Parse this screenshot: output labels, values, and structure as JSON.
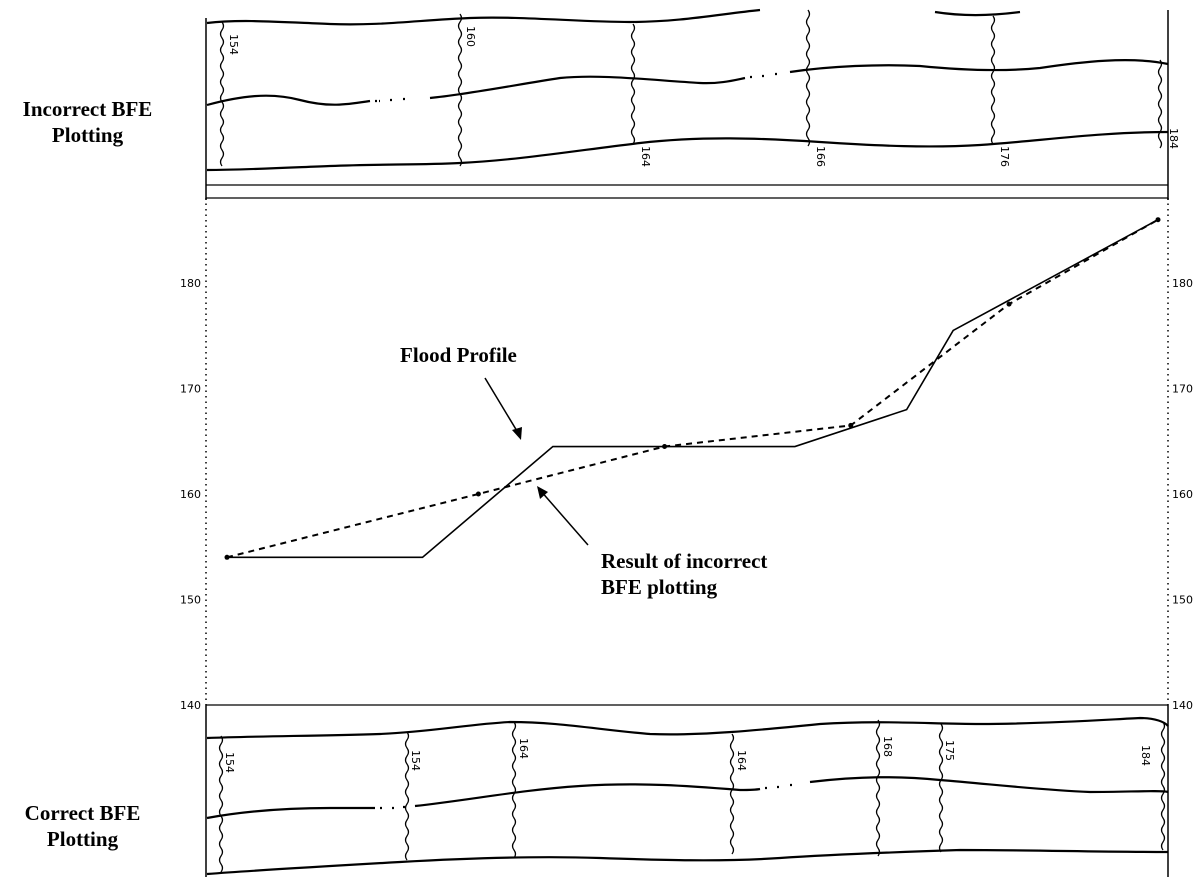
{
  "labels": {
    "top_panel": "Incorrect BFE Plotting",
    "bottom_panel": "Correct BFE Plotting",
    "flood_profile": "Flood Profile",
    "incorrect_result_line1": "Result of incorrect",
    "incorrect_result_line2": "BFE plotting"
  },
  "top_map_bfe_labels": [
    "154",
    "160",
    "164",
    "166",
    "176",
    "184"
  ],
  "bottom_map_bfe_labels": [
    "154",
    "154",
    "164",
    "164",
    "168",
    "175",
    "184"
  ],
  "elevation_axis_ticks": [
    "140",
    "150",
    "160",
    "170",
    "180"
  ],
  "chart_data": {
    "type": "line",
    "title": "",
    "xlabel": "",
    "ylabel": "",
    "ylim": [
      140,
      186
    ],
    "series": [
      {
        "name": "Flood Profile",
        "style": "solid",
        "points": [
          [
            0,
            154
          ],
          [
            0.21,
            154
          ],
          [
            0.35,
            164.5
          ],
          [
            0.61,
            164.5
          ],
          [
            0.73,
            168
          ],
          [
            0.78,
            175.5
          ],
          [
            1.0,
            186
          ]
        ]
      },
      {
        "name": "Result of incorrect BFE plotting",
        "style": "dashed",
        "points": [
          [
            0,
            154
          ],
          [
            0.27,
            160
          ],
          [
            0.47,
            164.5
          ],
          [
            0.67,
            166.5
          ],
          [
            0.84,
            178
          ],
          [
            1.0,
            186
          ]
        ]
      }
    ]
  }
}
